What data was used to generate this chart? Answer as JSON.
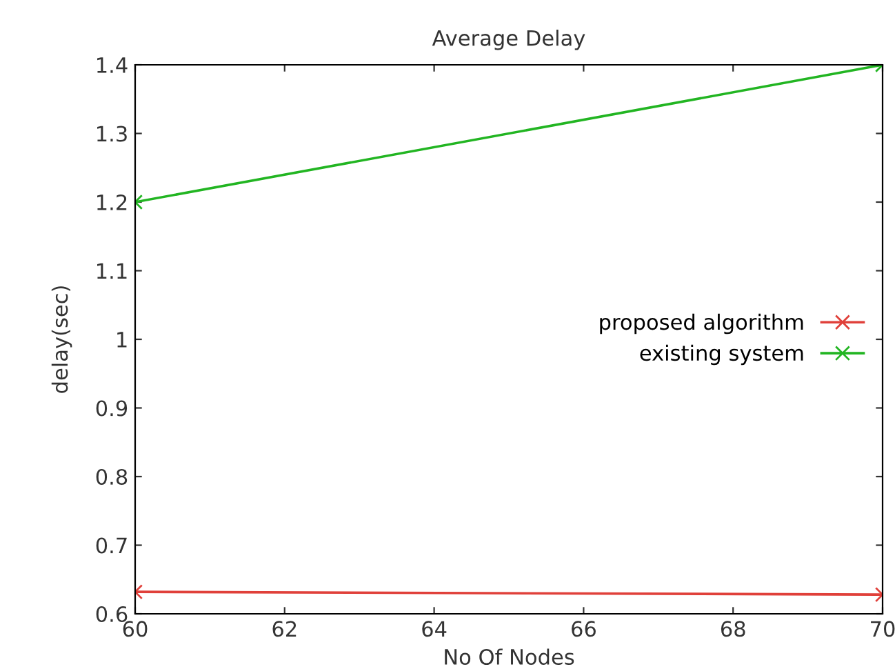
{
  "chart_data": {
    "type": "line",
    "title": "Average Delay",
    "xlabel": "No Of Nodes",
    "ylabel": "delay(sec)",
    "x": [
      60,
      70
    ],
    "series": [
      {
        "name": "proposed algorithm",
        "color": "#e0403a",
        "values": [
          0.632,
          0.628
        ]
      },
      {
        "name": "existing system",
        "color": "#22b522",
        "values": [
          1.2,
          1.4
        ]
      }
    ],
    "xlim": [
      60,
      70
    ],
    "xticks": [
      60,
      62,
      64,
      66,
      68,
      70
    ],
    "ylim": [
      0.6,
      1.4
    ],
    "yticks": [
      0.6,
      0.7,
      0.8,
      0.9,
      1,
      1.1,
      1.2,
      1.3,
      1.4
    ],
    "grid": false,
    "legend": "right",
    "marker": "cross",
    "line_style": "solid"
  }
}
